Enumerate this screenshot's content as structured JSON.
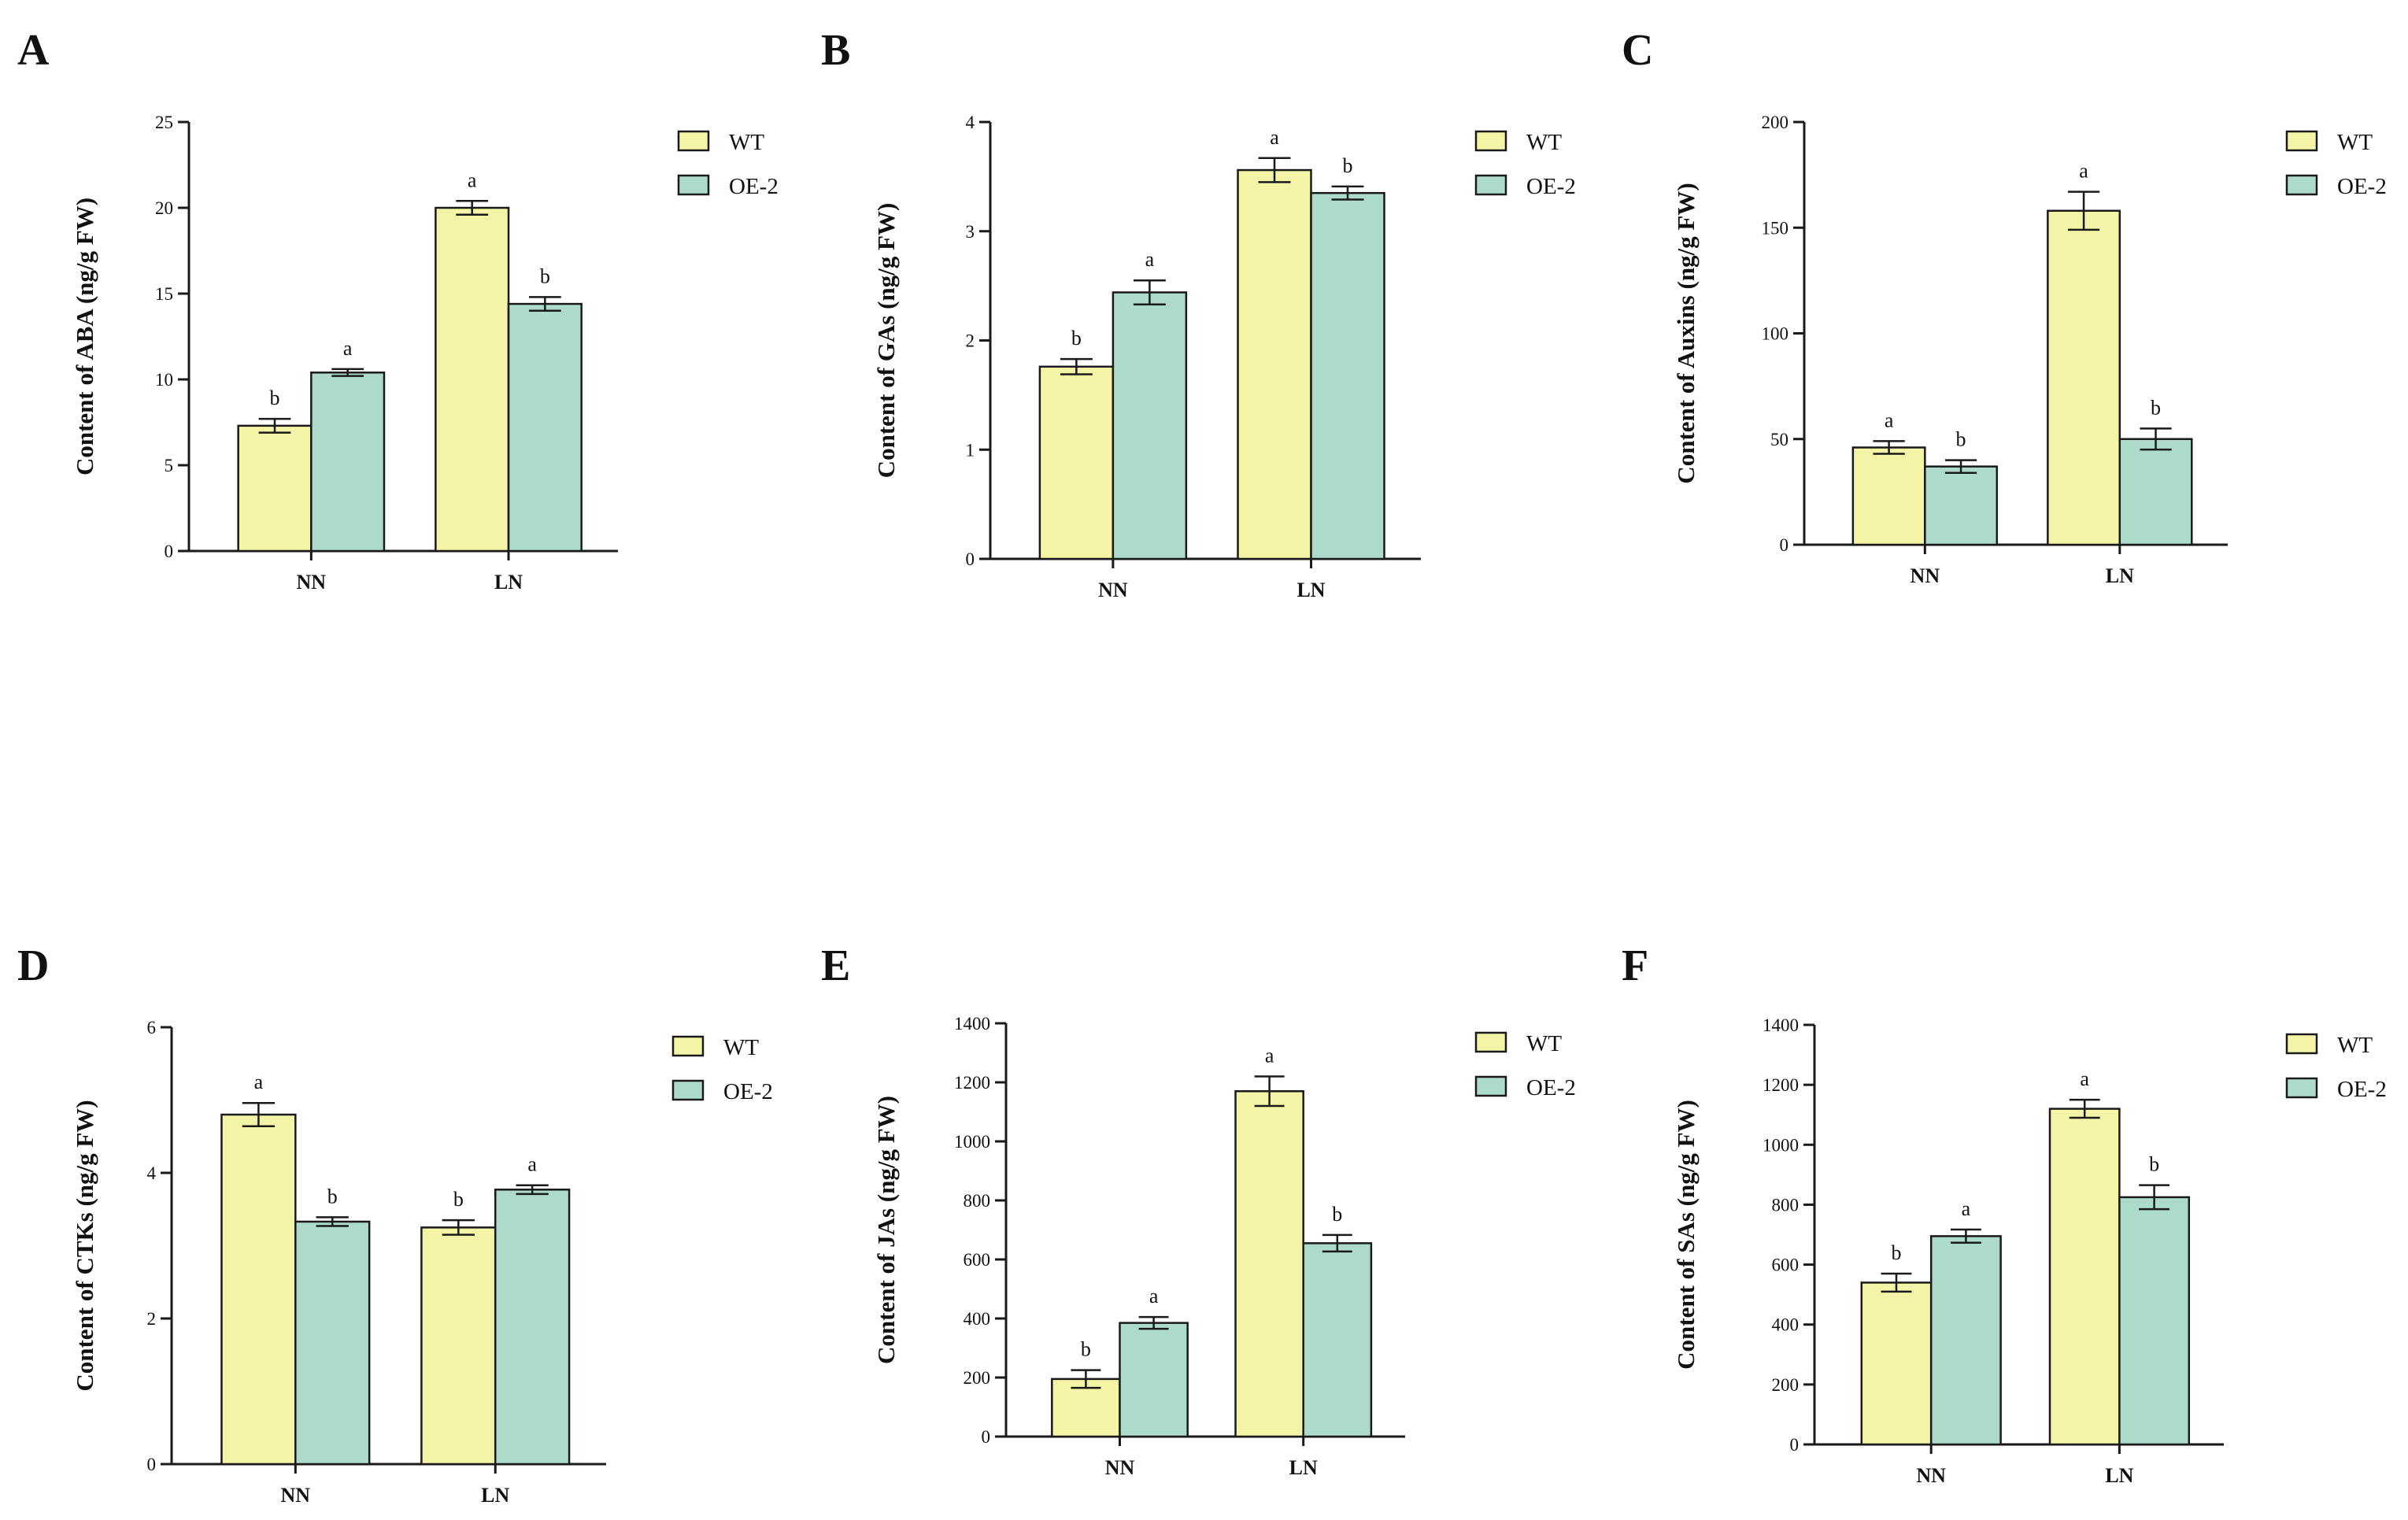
{
  "colors": {
    "wt": "#f3f4a6",
    "oe": "#addbcb",
    "stroke": "#1a1a1a"
  },
  "chart_data": [
    {
      "panel": "A",
      "type": "bar",
      "categories": [
        "NN",
        "LN"
      ],
      "ylabel": "Content of ABA (ng/g FW)",
      "ylim": [
        0,
        25
      ],
      "yticks": [
        "0",
        "5",
        "10",
        "15",
        "20",
        "25"
      ],
      "ytick_values": [
        0,
        5,
        10,
        15,
        20,
        25
      ],
      "legend": [
        "WT",
        "OE-2"
      ],
      "legend_position": "top-right",
      "series": [
        {
          "name": "WT",
          "values": [
            7.3,
            20.0
          ],
          "errors": [
            0.4,
            0.4
          ],
          "sig": [
            "b",
            "a"
          ]
        },
        {
          "name": "OE-2",
          "values": [
            10.4,
            14.4
          ],
          "errors": [
            0.2,
            0.4
          ],
          "sig": [
            "a",
            "b"
          ]
        }
      ]
    },
    {
      "panel": "B",
      "type": "bar",
      "categories": [
        "NN",
        "LN"
      ],
      "ylabel": "Content of GAs (ng/g FW)",
      "ylim": [
        0,
        4
      ],
      "yticks": [
        "0",
        "1",
        "2",
        "3",
        "4"
      ],
      "ytick_values": [
        0,
        1,
        2,
        3,
        4
      ],
      "legend": [
        "WT",
        "OE-2"
      ],
      "legend_position": "top-right",
      "series": [
        {
          "name": "WT",
          "values": [
            1.76,
            3.56
          ],
          "errors": [
            0.07,
            0.11
          ],
          "sig": [
            "b",
            "a"
          ]
        },
        {
          "name": "OE-2",
          "values": [
            2.44,
            3.35
          ],
          "errors": [
            0.11,
            0.06
          ],
          "sig": [
            "a",
            "b"
          ]
        }
      ]
    },
    {
      "panel": "C",
      "type": "bar",
      "categories": [
        "NN",
        "LN"
      ],
      "ylabel": "Content of Auxins (ng/g FW)",
      "ylim": [
        0,
        200
      ],
      "yticks": [
        "0",
        "50",
        "100",
        "150",
        "200"
      ],
      "ytick_values": [
        0,
        50,
        100,
        150,
        200
      ],
      "legend": [
        "WT",
        "OE-2"
      ],
      "legend_position": "top-right",
      "series": [
        {
          "name": "WT",
          "values": [
            46,
            158
          ],
          "errors": [
            3,
            9
          ],
          "sig": [
            "a",
            "a"
          ]
        },
        {
          "name": "OE-2",
          "values": [
            37,
            50
          ],
          "errors": [
            3,
            5
          ],
          "sig": [
            "b",
            "b"
          ]
        }
      ]
    },
    {
      "panel": "D",
      "type": "bar",
      "categories": [
        "NN",
        "LN"
      ],
      "ylabel": "Content of CTKs (ng/g FW)",
      "ylim": [
        0,
        6
      ],
      "yticks": [
        "0",
        "2",
        "4",
        "6"
      ],
      "ytick_values": [
        0,
        2,
        4,
        6
      ],
      "legend": [
        "WT",
        "OE-2"
      ],
      "legend_position": "top-right",
      "series": [
        {
          "name": "WT",
          "values": [
            4.8,
            3.25
          ],
          "errors": [
            0.16,
            0.1
          ],
          "sig": [
            "a",
            "b"
          ]
        },
        {
          "name": "OE-2",
          "values": [
            3.33,
            3.77
          ],
          "errors": [
            0.06,
            0.06
          ],
          "sig": [
            "b",
            "a"
          ]
        }
      ]
    },
    {
      "panel": "E",
      "type": "bar",
      "categories": [
        "NN",
        "LN"
      ],
      "ylabel": "Content of JAs (ng/g FW)",
      "ylim": [
        0,
        1400
      ],
      "yticks": [
        "0",
        "200",
        "400",
        "600",
        "800",
        "1000",
        "1200",
        "1400"
      ],
      "ytick_values": [
        0,
        200,
        400,
        600,
        800,
        1000,
        1200,
        1400
      ],
      "legend": [
        "WT",
        "OE-2"
      ],
      "legend_position": "top-right",
      "series": [
        {
          "name": "WT",
          "values": [
            195,
            1170
          ],
          "errors": [
            30,
            50
          ],
          "sig": [
            "b",
            "a"
          ]
        },
        {
          "name": "OE-2",
          "values": [
            385,
            655
          ],
          "errors": [
            20,
            28
          ],
          "sig": [
            "a",
            "b"
          ]
        }
      ]
    },
    {
      "panel": "F",
      "type": "bar",
      "categories": [
        "NN",
        "LN"
      ],
      "ylabel": "Content of SAs (ng/g FW)",
      "ylim": [
        0,
        1400
      ],
      "yticks": [
        "0",
        "200",
        "400",
        "600",
        "800",
        "1000",
        "1200",
        "1400"
      ],
      "ytick_values": [
        0,
        200,
        400,
        600,
        800,
        1000,
        1200,
        1400
      ],
      "legend": [
        "WT",
        "OE-2"
      ],
      "legend_position": "top-right",
      "series": [
        {
          "name": "WT",
          "values": [
            540,
            1120
          ],
          "errors": [
            30,
            30
          ],
          "sig": [
            "b",
            "a"
          ]
        },
        {
          "name": "OE-2",
          "values": [
            695,
            825
          ],
          "errors": [
            22,
            40
          ],
          "sig": [
            "a",
            "b"
          ]
        }
      ]
    }
  ]
}
